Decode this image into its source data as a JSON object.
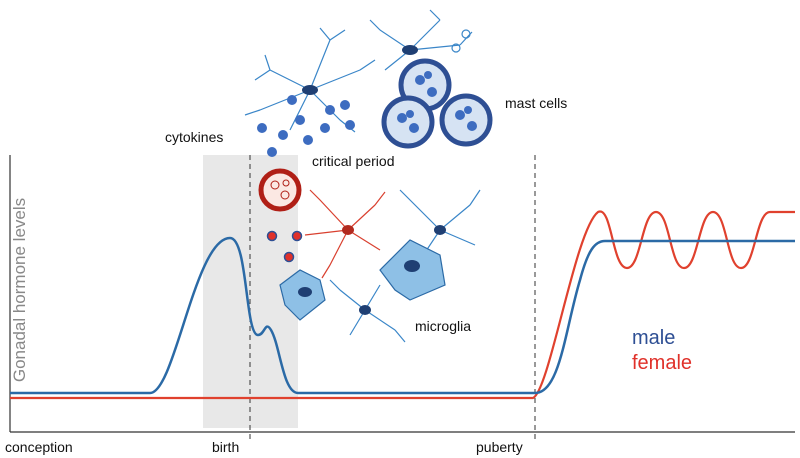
{
  "labels": {
    "cytokines": "cytokines",
    "mast_cells": "mast cells",
    "critical_period": "critical period",
    "microglia": "microglia"
  },
  "legend": {
    "male": "male",
    "female": "female"
  },
  "y_axis": {
    "title": "Gonadal hormone levels"
  },
  "x_axis": {
    "labels": [
      "conception",
      "birth",
      "puberty"
    ]
  }
}
